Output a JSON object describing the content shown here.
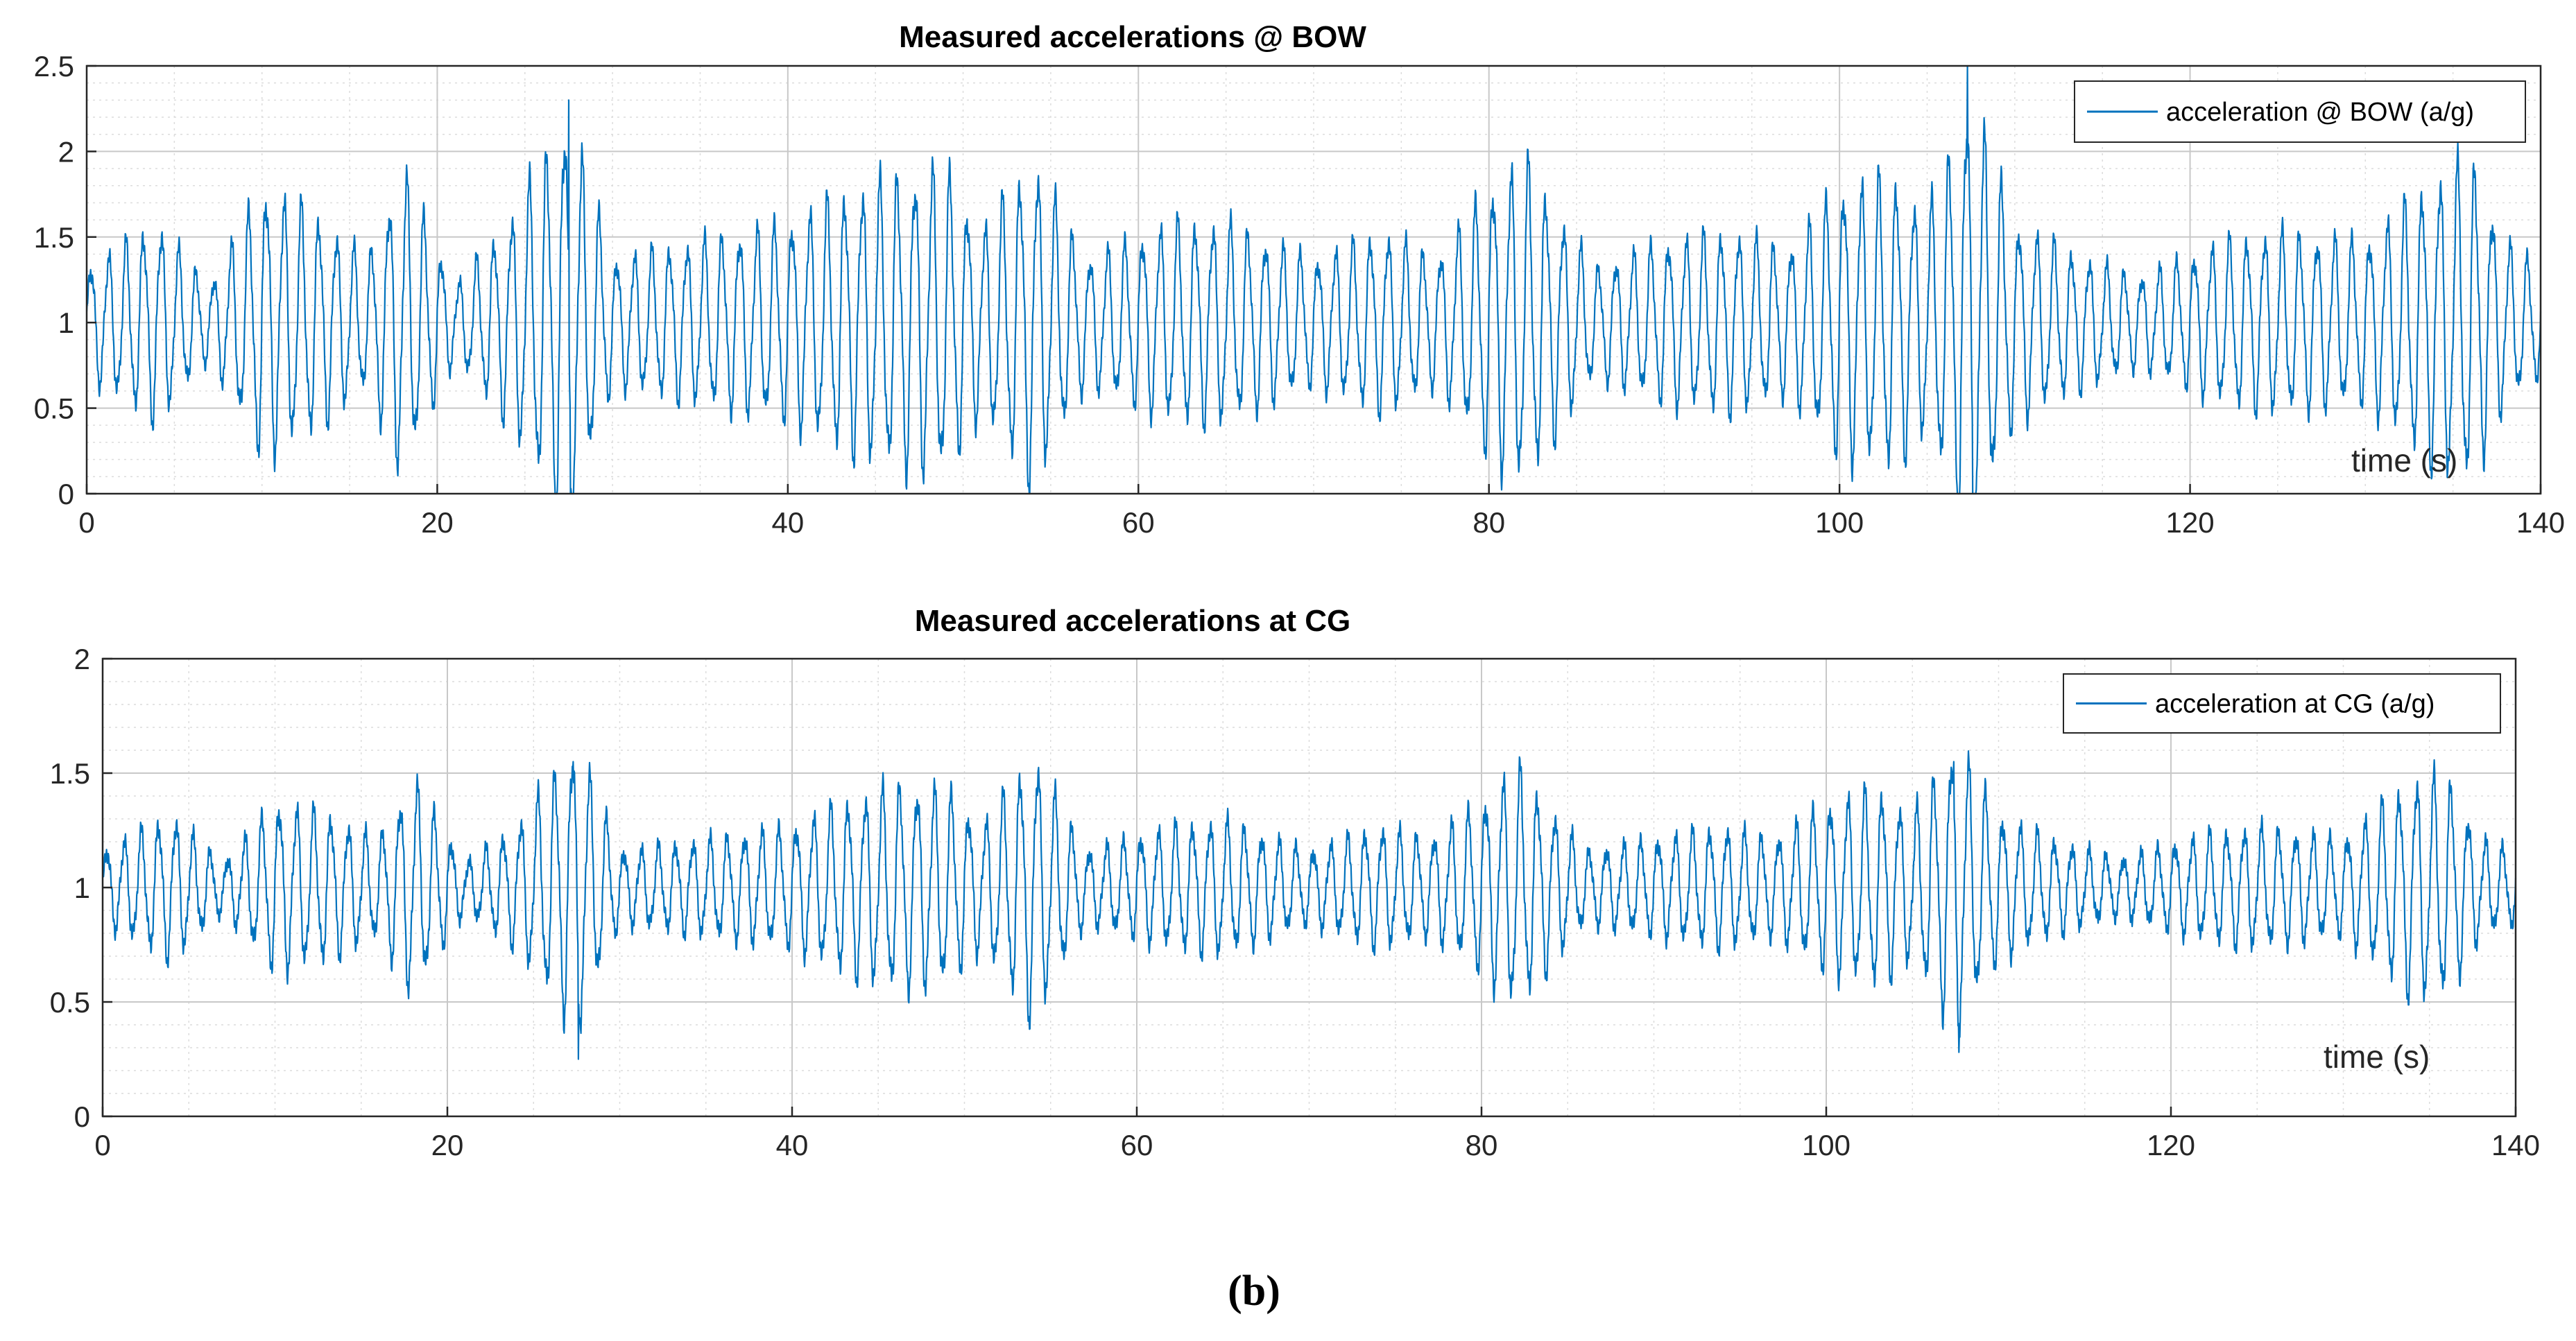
{
  "chart_data": [
    {
      "type": "line",
      "title": "Measured accelerations @ BOW",
      "xlabel": "time (s)",
      "ylabel": "",
      "xlim": [
        0,
        140
      ],
      "ylim": [
        0,
        2.5
      ],
      "xticks": [
        0,
        20,
        40,
        60,
        80,
        100,
        120,
        140
      ],
      "yticks": [
        0,
        0.5,
        1,
        1.5,
        2,
        2.5
      ],
      "xtick_labels": [
        "0",
        "20",
        "40",
        "60",
        "80",
        "100",
        "120",
        "140"
      ],
      "ytick_labels": [
        "0",
        "0.5",
        "1",
        "1.5",
        "2",
        "2.5"
      ],
      "grid": true,
      "minor_grid": true,
      "legend": "top-right",
      "series": [
        {
          "name": "acceleration @ BOW (a/g)",
          "color": "#0072BD",
          "signal": {
            "mean": 1.0,
            "duration": 140,
            "period": 1.0,
            "envelope": [
              [
                0,
                0.3
              ],
              [
                4,
                0.55
              ],
              [
                7,
                0.2
              ],
              [
                10,
                0.75
              ],
              [
                13,
                0.6
              ],
              [
                16,
                0.35
              ],
              [
                18,
                0.85
              ],
              [
                21,
                0.2
              ],
              [
                24,
                0.55
              ],
              [
                27.5,
                1.15
              ],
              [
                30,
                0.35
              ],
              [
                35,
                0.45
              ],
              [
                40,
                0.55
              ],
              [
                43,
                0.7
              ],
              [
                46,
                0.8
              ],
              [
                49,
                0.85
              ],
              [
                51,
                0.5
              ],
              [
                54,
                0.9
              ],
              [
                57,
                0.35
              ],
              [
                62,
                0.55
              ],
              [
                65,
                0.55
              ],
              [
                70,
                0.35
              ],
              [
                74,
                0.5
              ],
              [
                77,
                0.35
              ],
              [
                80,
                0.75
              ],
              [
                82,
                0.9
              ],
              [
                86,
                0.3
              ],
              [
                90,
                0.45
              ],
              [
                94,
                0.5
              ],
              [
                97,
                0.4
              ],
              [
                100,
                0.75
              ],
              [
                103,
                0.8
              ],
              [
                105,
                0.6
              ],
              [
                107.5,
                1.25
              ],
              [
                110,
                0.55
              ],
              [
                113,
                0.4
              ],
              [
                117,
                0.25
              ],
              [
                122,
                0.45
              ],
              [
                125,
                0.5
              ],
              [
                130,
                0.45
              ],
              [
                134,
                0.8
              ],
              [
                136,
                0.9
              ],
              [
                138,
                0.45
              ],
              [
                140,
                0.3
              ]
            ],
            "spikes": [
              [
                27.5,
                2.3
              ],
              [
                27.6,
                0.0
              ],
              [
                107.3,
                2.5
              ],
              [
                107.6,
                0.0
              ]
            ]
          }
        }
      ]
    },
    {
      "type": "line",
      "title": "Measured accelerations at CG",
      "xlabel": "time (s)",
      "ylabel": "",
      "xlim": [
        0,
        140
      ],
      "ylim": [
        0,
        2
      ],
      "xticks": [
        0,
        20,
        40,
        60,
        80,
        100,
        120,
        140
      ],
      "yticks": [
        0,
        0.5,
        1,
        1.5,
        2
      ],
      "xtick_labels": [
        "0",
        "20",
        "40",
        "60",
        "80",
        "100",
        "120",
        "140"
      ],
      "ytick_labels": [
        "0",
        "0.5",
        "1",
        "1.5",
        "2"
      ],
      "grid": true,
      "minor_grid": true,
      "legend": "top-right",
      "series": [
        {
          "name": "acceleration at CG (a/g)",
          "color": "#0072BD",
          "signal": {
            "mean": 1.0,
            "duration": 140,
            "period": 1.0,
            "envelope": [
              [
                0,
                0.15
              ],
              [
                4,
                0.3
              ],
              [
                7,
                0.1
              ],
              [
                10,
                0.35
              ],
              [
                13,
                0.3
              ],
              [
                16,
                0.2
              ],
              [
                18,
                0.45
              ],
              [
                21,
                0.1
              ],
              [
                24,
                0.25
              ],
              [
                27.5,
                0.6
              ],
              [
                30,
                0.15
              ],
              [
                35,
                0.2
              ],
              [
                40,
                0.25
              ],
              [
                43,
                0.35
              ],
              [
                46,
                0.42
              ],
              [
                49,
                0.4
              ],
              [
                51,
                0.25
              ],
              [
                54,
                0.55
              ],
              [
                57,
                0.15
              ],
              [
                62,
                0.25
              ],
              [
                65,
                0.28
              ],
              [
                70,
                0.15
              ],
              [
                74,
                0.25
              ],
              [
                77,
                0.2
              ],
              [
                80,
                0.35
              ],
              [
                82,
                0.5
              ],
              [
                86,
                0.15
              ],
              [
                90,
                0.2
              ],
              [
                94,
                0.25
              ],
              [
                97,
                0.2
              ],
              [
                100,
                0.35
              ],
              [
                103,
                0.4
              ],
              [
                105,
                0.3
              ],
              [
                107.5,
                0.6
              ],
              [
                110,
                0.3
              ],
              [
                113,
                0.2
              ],
              [
                117,
                0.12
              ],
              [
                122,
                0.22
              ],
              [
                125,
                0.25
              ],
              [
                130,
                0.2
              ],
              [
                134,
                0.45
              ],
              [
                136,
                0.45
              ],
              [
                138,
                0.2
              ],
              [
                140,
                0.15
              ]
            ],
            "spikes": [
              [
                27.3,
                1.55
              ],
              [
                27.6,
                0.25
              ],
              [
                107.4,
                1.55
              ],
              [
                107.7,
                0.28
              ]
            ]
          }
        }
      ]
    }
  ],
  "caption": "(b)"
}
